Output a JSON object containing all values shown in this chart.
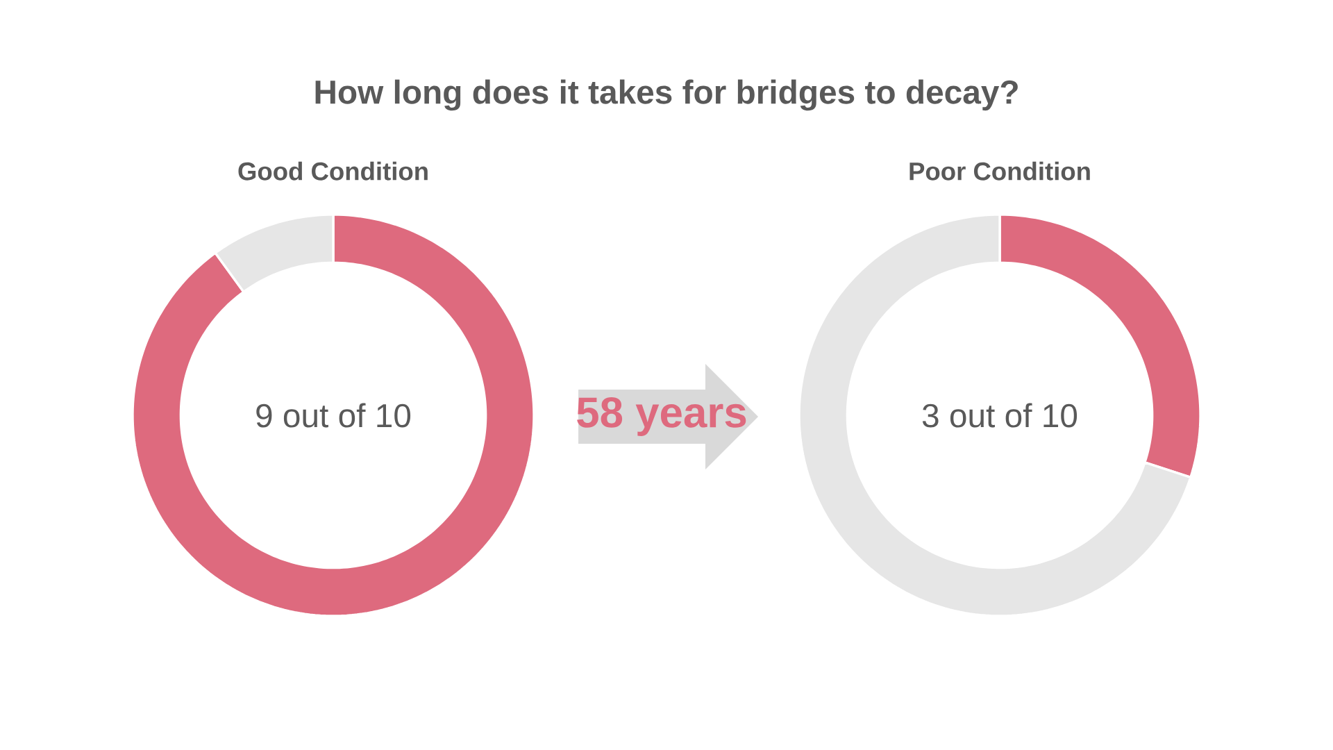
{
  "chart_data": [
    {
      "type": "other",
      "title": "How long does it takes for bridges to decay?",
      "annotations": [
        "58 years"
      ]
    },
    {
      "type": "donut",
      "title": "Good Condition",
      "categories": [
        null,
        null
      ],
      "values": [
        90,
        10
      ],
      "colors": [
        "#de6a7e",
        "#e6e6e6"
      ],
      "annotations": [
        "9 out of 10"
      ]
    },
    {
      "type": "donut",
      "title": "Poor Condition",
      "categories": [
        null,
        null
      ],
      "values": [
        30,
        70
      ],
      "colors": [
        "#de6a7e",
        "#e6e6e6"
      ],
      "annotations": [
        "3 out of 10"
      ]
    }
  ]
}
